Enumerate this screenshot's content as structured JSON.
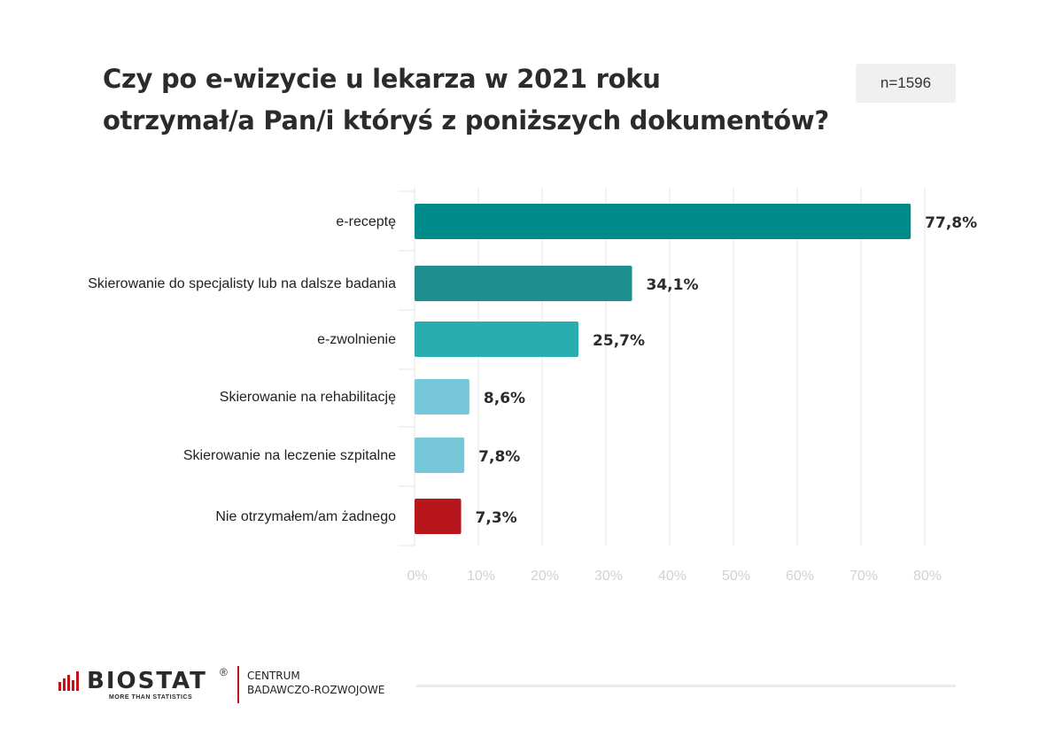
{
  "title_lines": [
    "Czy po e-wizycie u lekarza w 2021 roku",
    "otrzymał/a Pan/i któryś z poniższych dokumentów?"
  ],
  "sample_size": "n=1596",
  "colors": {
    "dark_teal": "#008b8b",
    "mid_teal": "#1e8e8e",
    "light_teal": "#2aadae",
    "light_blue": "#76c7d9",
    "red": "#b8161d",
    "grid": "#e6e6e6",
    "tick_text": "#d2d2d2"
  },
  "chart_data": {
    "type": "bar",
    "orientation": "horizontal",
    "categories": [
      "e-receptę",
      "Skierowanie do specjalisty lub na dalsze badania",
      "e-zwolnienie",
      "Skierowanie na rehabilitację",
      "Skierowanie na leczenie szpitalne",
      "Nie otrzymałem/am żadnego"
    ],
    "values": [
      77.8,
      34.1,
      25.7,
      8.6,
      7.8,
      7.3
    ],
    "value_labels": [
      "77,8%",
      "34,1%",
      "25,7%",
      "8,6%",
      "7,8%",
      "7,3%"
    ],
    "bar_colors": [
      "#008b8b",
      "#1e8e8e",
      "#2aadae",
      "#76c7d9",
      "#76c7d9",
      "#b8161d"
    ],
    "xlim": [
      0,
      80
    ],
    "xticks": [
      0,
      10,
      20,
      30,
      40,
      50,
      60,
      70,
      80
    ],
    "xtick_labels": [
      "0%",
      "10%",
      "20%",
      "30%",
      "40%",
      "50%",
      "60%",
      "70%",
      "80%"
    ],
    "grid": true
  },
  "footer": {
    "brand": "BIOSTAT",
    "registered": "®",
    "tagline": "MORE THAN STATISTICS",
    "dept_lines": [
      "CENTRUM",
      "BADAWCZO-ROZWOJOWE"
    ]
  }
}
